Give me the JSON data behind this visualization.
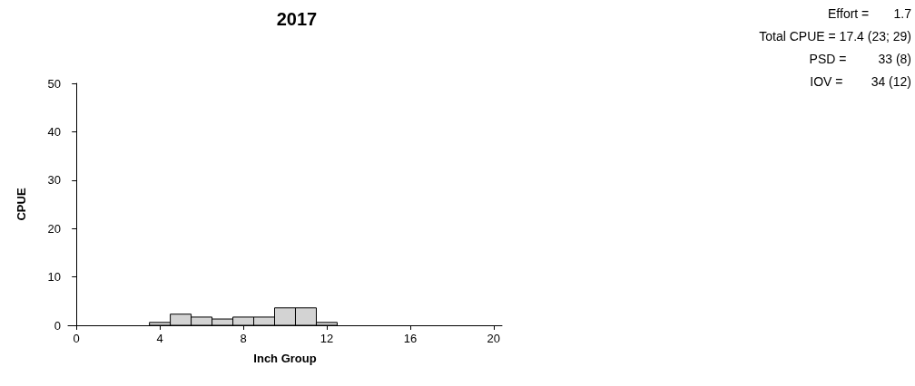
{
  "chart_data": {
    "type": "histogram",
    "title": "2017",
    "xlabel": "Inch Group",
    "ylabel": "CPUE",
    "bins": [
      3.5,
      4.5,
      5.5,
      6.5,
      7.5,
      8.5,
      9.5,
      10.5,
      11.5,
      12.5
    ],
    "values": [
      0.6,
      2.3,
      1.7,
      1.3,
      1.7,
      1.7,
      3.6,
      3.6,
      0.6
    ],
    "color": "#d3d3d3",
    "xlim": [
      -0.4,
      20.4
    ],
    "xticks": [
      0,
      4,
      8,
      12,
      16,
      20
    ],
    "ylim": [
      0,
      50
    ],
    "yticks": [
      0,
      10,
      20,
      30,
      40,
      50
    ],
    "grid": false,
    "annotations": [
      "Effort =       1.7",
      "Total CPUE = 17.4 (23; 29)",
      "PSD =         33 (8)",
      "IOV =        34 (12)"
    ]
  }
}
